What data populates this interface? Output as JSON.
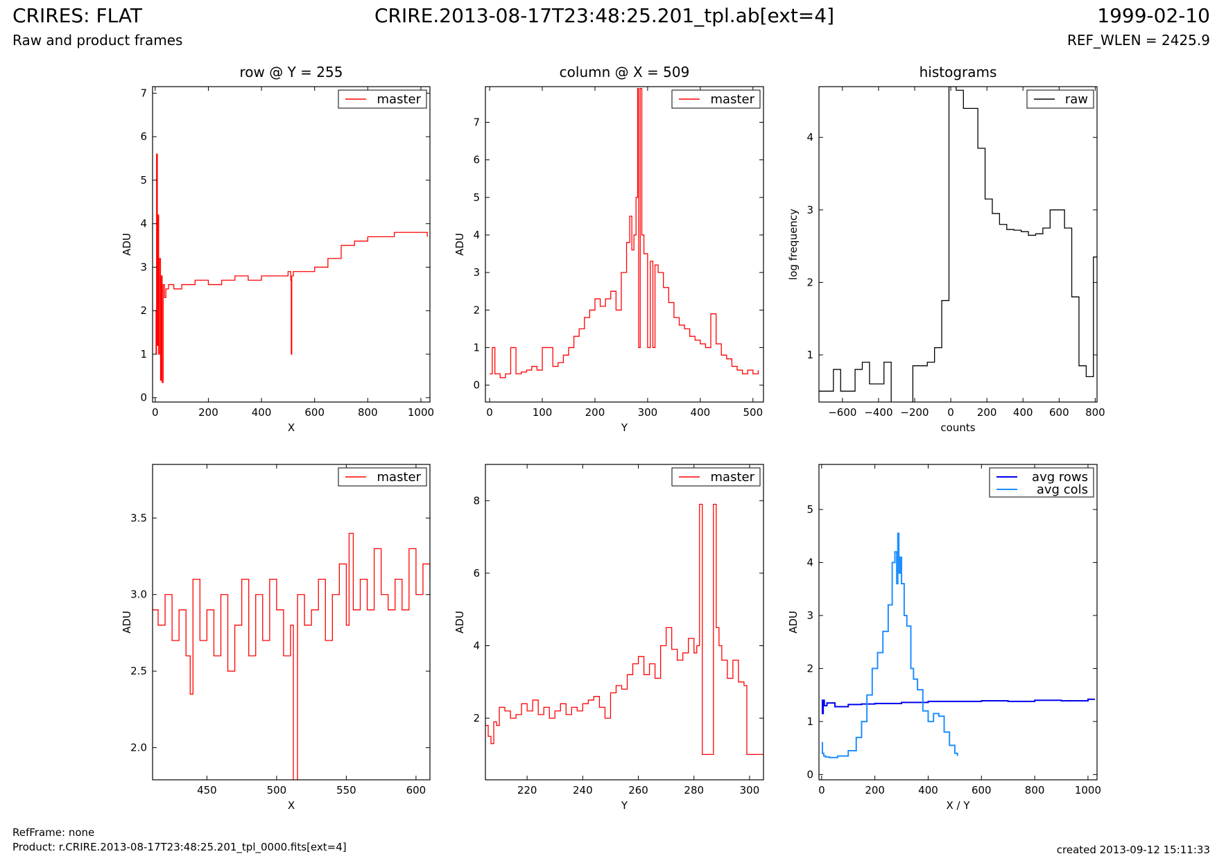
{
  "header": {
    "title_left": "CRIRES: FLAT",
    "title_center": "CRIRE.2013-08-17T23:48:25.201_tpl.ab[ext=4]",
    "title_right": "1999-02-10",
    "subtitle_left": "Raw and product frames",
    "subtitle_right": "REF_WLEN = 2425.9"
  },
  "footer": {
    "ref_frame": "RefFrame: none",
    "product": "Product: r.CRIRE.2013-08-17T23:48:25.201_tpl_0000.fits[ext=4]",
    "created": "created 2013-09-12 15:11:33"
  },
  "chart_data": [
    {
      "id": "row",
      "type": "line",
      "title": "row @ Y = 255",
      "xlabel": "X",
      "ylabel": "ADU",
      "xlim": [
        -10,
        1034
      ],
      "ylim": [
        -0.1,
        7.15
      ],
      "xticks": [
        0,
        200,
        400,
        600,
        800,
        1000
      ],
      "yticks": [
        0,
        1,
        2,
        3,
        4,
        5,
        6,
        7
      ],
      "legend": "top-right",
      "series": [
        {
          "name": "master",
          "color": "#ff0000",
          "x": [
            0,
            3,
            5,
            8,
            10,
            13,
            16,
            20,
            23,
            26,
            30,
            35,
            40,
            50,
            70,
            100,
            150,
            200,
            250,
            300,
            350,
            400,
            450,
            500,
            510,
            512,
            514,
            520,
            550,
            600,
            650,
            700,
            750,
            800,
            850,
            900,
            950,
            1000,
            1024
          ],
          "y": [
            2.0,
            1.0,
            5.6,
            1.2,
            4.2,
            1.0,
            3.2,
            0.4,
            2.8,
            0.35,
            2.6,
            2.3,
            2.5,
            2.6,
            2.5,
            2.6,
            2.7,
            2.6,
            2.7,
            2.8,
            2.7,
            2.8,
            2.8,
            2.9,
            2.7,
            1.0,
            2.8,
            2.9,
            2.9,
            3.0,
            3.2,
            3.5,
            3.6,
            3.7,
            3.7,
            3.8,
            3.8,
            3.8,
            3.7
          ]
        }
      ]
    },
    {
      "id": "col",
      "type": "line",
      "title": "column @ X = 509",
      "xlabel": "Y",
      "ylabel": "ADU",
      "xlim": [
        -8,
        520
      ],
      "ylim": [
        -0.45,
        7.95
      ],
      "xticks": [
        0,
        100,
        200,
        300,
        400,
        500
      ],
      "yticks": [
        0,
        1,
        2,
        3,
        4,
        5,
        6,
        7
      ],
      "legend": "top-right",
      "series": [
        {
          "name": "master",
          "color": "#ff0000",
          "x": [
            0,
            5,
            10,
            20,
            30,
            40,
            50,
            60,
            70,
            80,
            90,
            100,
            110,
            120,
            130,
            140,
            150,
            160,
            170,
            180,
            190,
            200,
            210,
            220,
            230,
            240,
            250,
            260,
            266,
            270,
            274,
            278,
            281,
            283,
            286,
            289,
            293,
            300,
            305,
            310,
            314,
            320,
            330,
            340,
            350,
            360,
            370,
            380,
            390,
            400,
            410,
            420,
            430,
            440,
            450,
            460,
            470,
            480,
            490,
            500,
            510
          ],
          "y": [
            0.3,
            1.0,
            0.3,
            0.2,
            0.3,
            1.0,
            0.3,
            0.35,
            0.4,
            0.5,
            0.4,
            1.0,
            1.0,
            0.5,
            0.6,
            0.8,
            1.0,
            1.3,
            1.5,
            1.8,
            2.0,
            2.3,
            2.1,
            2.3,
            2.5,
            2.0,
            3.0,
            3.8,
            4.5,
            3.6,
            4.0,
            5.0,
            7.9,
            1.0,
            7.9,
            4.0,
            3.5,
            1.0,
            3.3,
            1.0,
            3.2,
            3.0,
            2.6,
            2.2,
            1.8,
            1.6,
            1.5,
            1.3,
            1.2,
            1.1,
            1.0,
            1.9,
            1.1,
            0.8,
            0.7,
            0.5,
            0.4,
            0.3,
            0.4,
            0.3,
            0.4
          ]
        }
      ]
    },
    {
      "id": "hist",
      "type": "line",
      "title": "histograms",
      "xlabel": "counts",
      "ylabel": "log frequency",
      "xlim": [
        -730,
        810
      ],
      "ylim": [
        0.35,
        4.7
      ],
      "xticks": [
        -600,
        -400,
        -200,
        0,
        200,
        400,
        600,
        800
      ],
      "yticks": [
        1,
        2,
        3,
        4
      ],
      "legend": "top-right",
      "series": [
        {
          "name": "raw",
          "color": "#000000",
          "x": [
            -730,
            -650,
            -610,
            -570,
            -530,
            -490,
            -450,
            -410,
            -370,
            -330,
            -290,
            -250,
            -210,
            -170,
            -130,
            -90,
            -50,
            -10,
            30,
            70,
            110,
            150,
            190,
            230,
            270,
            310,
            350,
            390,
            430,
            470,
            510,
            550,
            590,
            630,
            670,
            710,
            750,
            790,
            810
          ],
          "y": [
            0.5,
            0.8,
            0.5,
            0.5,
            0.8,
            0.9,
            0.6,
            0.6,
            0.9,
            0.2,
            0.2,
            0.2,
            0.85,
            0.85,
            0.9,
            1.1,
            1.75,
            4.7,
            4.65,
            4.4,
            4.4,
            3.85,
            3.15,
            2.95,
            2.8,
            2.73,
            2.72,
            2.7,
            2.65,
            2.67,
            2.75,
            3.0,
            3.0,
            2.75,
            1.8,
            0.85,
            0.7,
            2.35,
            2.35
          ]
        }
      ]
    },
    {
      "id": "rowzoom",
      "type": "line",
      "title": "",
      "xlabel": "X",
      "ylabel": "ADU",
      "xlim": [
        411,
        610
      ],
      "ylim": [
        1.79,
        3.85
      ],
      "xticks": [
        450,
        500,
        550,
        600
      ],
      "yticks": [
        2.0,
        2.5,
        3.0,
        3.5
      ],
      "ytick_labels": [
        "2.0",
        "2.5",
        "3.0",
        "3.5"
      ],
      "legend": "top-right",
      "series": [
        {
          "name": "master",
          "color": "#ff0000",
          "x": [
            411,
            415,
            420,
            425,
            430,
            435,
            438,
            440,
            445,
            450,
            455,
            460,
            465,
            470,
            475,
            480,
            485,
            490,
            495,
            500,
            505,
            510,
            512,
            513,
            515,
            520,
            525,
            530,
            535,
            540,
            545,
            550,
            552,
            555,
            560,
            565,
            570,
            575,
            580,
            585,
            590,
            595,
            600,
            605,
            610
          ],
          "y": [
            2.9,
            2.8,
            3.0,
            2.7,
            2.9,
            2.6,
            2.35,
            3.1,
            2.7,
            2.9,
            2.6,
            3.0,
            2.5,
            2.8,
            3.1,
            2.6,
            3.0,
            2.7,
            3.1,
            2.9,
            2.6,
            2.8,
            1.6,
            1.6,
            3.0,
            2.8,
            2.9,
            3.1,
            2.7,
            3.0,
            3.2,
            2.8,
            3.4,
            2.9,
            3.1,
            2.9,
            3.3,
            3.0,
            2.9,
            3.1,
            2.9,
            3.3,
            3.0,
            3.2,
            3.1
          ]
        }
      ]
    },
    {
      "id": "colzoom",
      "type": "line",
      "title": "",
      "xlabel": "Y",
      "ylabel": "ADU",
      "xlim": [
        205,
        305
      ],
      "ylim": [
        0.3,
        9.0
      ],
      "xticks": [
        220,
        240,
        260,
        280,
        300
      ],
      "yticks": [
        2,
        4,
        6,
        8
      ],
      "legend": "top-right",
      "series": [
        {
          "name": "master",
          "color": "#ff0000",
          "x": [
            205,
            206,
            207,
            208,
            209,
            210,
            212,
            214,
            216,
            218,
            220,
            222,
            224,
            226,
            228,
            230,
            232,
            234,
            236,
            238,
            240,
            242,
            244,
            246,
            248,
            250,
            252,
            254,
            256,
            258,
            260,
            262,
            264,
            266,
            268,
            270,
            272,
            274,
            276,
            278,
            280,
            281,
            282,
            283,
            284,
            286,
            287,
            288,
            289,
            290,
            292,
            294,
            296,
            298,
            299,
            300,
            305
          ],
          "y": [
            1.8,
            1.5,
            1.3,
            1.9,
            1.8,
            2.3,
            2.2,
            2.0,
            2.1,
            2.4,
            2.2,
            2.5,
            2.1,
            2.3,
            2.0,
            2.2,
            2.4,
            2.1,
            2.3,
            2.2,
            2.4,
            2.5,
            2.6,
            2.3,
            2.0,
            2.7,
            2.9,
            2.8,
            3.2,
            3.5,
            3.7,
            3.2,
            3.5,
            3.1,
            4.0,
            4.5,
            3.9,
            3.6,
            3.8,
            4.2,
            3.8,
            4.0,
            7.9,
            1.0,
            1.0,
            1.0,
            7.9,
            4.5,
            4.0,
            3.6,
            3.1,
            3.6,
            3.0,
            2.9,
            1.0,
            1.0,
            1.0
          ]
        }
      ]
    },
    {
      "id": "avg",
      "type": "line",
      "title": "",
      "xlabel": "X / Y",
      "ylabel": "ADU",
      "xlim": [
        -10,
        1034
      ],
      "ylim": [
        -0.1,
        5.85
      ],
      "xticks": [
        0,
        200,
        400,
        600,
        800,
        1000
      ],
      "yticks": [
        0,
        1,
        2,
        3,
        4,
        5
      ],
      "legend": "top-right",
      "series": [
        {
          "name": "avg rows",
          "color": "#0000ee",
          "x": [
            0,
            3,
            6,
            10,
            20,
            50,
            100,
            150,
            200,
            300,
            400,
            500,
            600,
            700,
            800,
            900,
            1000,
            1024
          ],
          "y": [
            1.4,
            1.15,
            1.4,
            1.3,
            1.35,
            1.28,
            1.32,
            1.33,
            1.34,
            1.36,
            1.38,
            1.38,
            1.39,
            1.38,
            1.4,
            1.39,
            1.42,
            1.43
          ]
        },
        {
          "name": "avg cols",
          "color": "#1e8fff",
          "x": [
            0,
            3,
            8,
            15,
            30,
            60,
            100,
            130,
            150,
            170,
            190,
            210,
            230,
            250,
            265,
            275,
            282,
            286,
            290,
            295,
            300,
            310,
            320,
            335,
            345,
            360,
            380,
            400,
            420,
            440,
            460,
            480,
            500,
            510
          ],
          "y": [
            0.6,
            0.4,
            0.35,
            0.33,
            0.32,
            0.35,
            0.45,
            0.7,
            1.0,
            1.5,
            2.0,
            2.3,
            2.7,
            3.2,
            4.0,
            4.2,
            3.6,
            4.55,
            3.8,
            4.1,
            3.6,
            3.0,
            2.8,
            2.0,
            1.8,
            1.6,
            1.2,
            1.0,
            1.15,
            1.1,
            0.8,
            0.55,
            0.4,
            0.35
          ]
        }
      ]
    }
  ]
}
